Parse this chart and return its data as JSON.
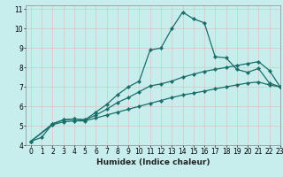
{
  "title": "",
  "xlabel": "Humidex (Indice chaleur)",
  "ylabel": "",
  "xlim": [
    -0.5,
    23
  ],
  "ylim": [
    4,
    11.2
  ],
  "yticks": [
    4,
    5,
    6,
    7,
    8,
    9,
    10,
    11
  ],
  "xticks": [
    0,
    1,
    2,
    3,
    4,
    5,
    6,
    7,
    8,
    9,
    10,
    11,
    12,
    13,
    14,
    15,
    16,
    17,
    18,
    19,
    20,
    21,
    22,
    23
  ],
  "bg_color": "#c8eded",
  "grid_color": "#ddc8c8",
  "line_color": "#1a6e6a",
  "line1_x": [
    0,
    1,
    2,
    3,
    4,
    5,
    6,
    7,
    8,
    9,
    10,
    11,
    12,
    13,
    14,
    15,
    16,
    17,
    18,
    19,
    20,
    21,
    22,
    23
  ],
  "line1_y": [
    4.2,
    4.4,
    5.1,
    5.3,
    5.35,
    5.3,
    5.7,
    6.1,
    6.6,
    7.0,
    7.3,
    8.9,
    9.0,
    10.0,
    10.85,
    10.5,
    10.3,
    8.55,
    8.5,
    7.9,
    7.75,
    7.95,
    7.2,
    7.0
  ],
  "line2_x": [
    0,
    2,
    3,
    4,
    5,
    6,
    7,
    8,
    9,
    10,
    11,
    12,
    13,
    14,
    15,
    16,
    17,
    18,
    19,
    20,
    21,
    22,
    23
  ],
  "line2_y": [
    4.2,
    5.1,
    5.3,
    5.35,
    5.3,
    5.55,
    5.85,
    6.2,
    6.45,
    6.75,
    7.05,
    7.15,
    7.3,
    7.5,
    7.65,
    7.8,
    7.9,
    8.0,
    8.1,
    8.2,
    8.3,
    7.85,
    7.0
  ],
  "line3_x": [
    0,
    2,
    3,
    4,
    5,
    6,
    7,
    8,
    9,
    10,
    11,
    12,
    13,
    14,
    15,
    16,
    17,
    18,
    19,
    20,
    21,
    22,
    23
  ],
  "line3_y": [
    4.2,
    5.05,
    5.2,
    5.25,
    5.25,
    5.4,
    5.55,
    5.7,
    5.85,
    6.0,
    6.15,
    6.3,
    6.45,
    6.58,
    6.68,
    6.78,
    6.9,
    7.0,
    7.1,
    7.2,
    7.25,
    7.1,
    7.0
  ],
  "marker_size": 2.2,
  "linewidth": 0.9,
  "xlabel_fontsize": 6.5,
  "tick_fontsize": 5.5
}
